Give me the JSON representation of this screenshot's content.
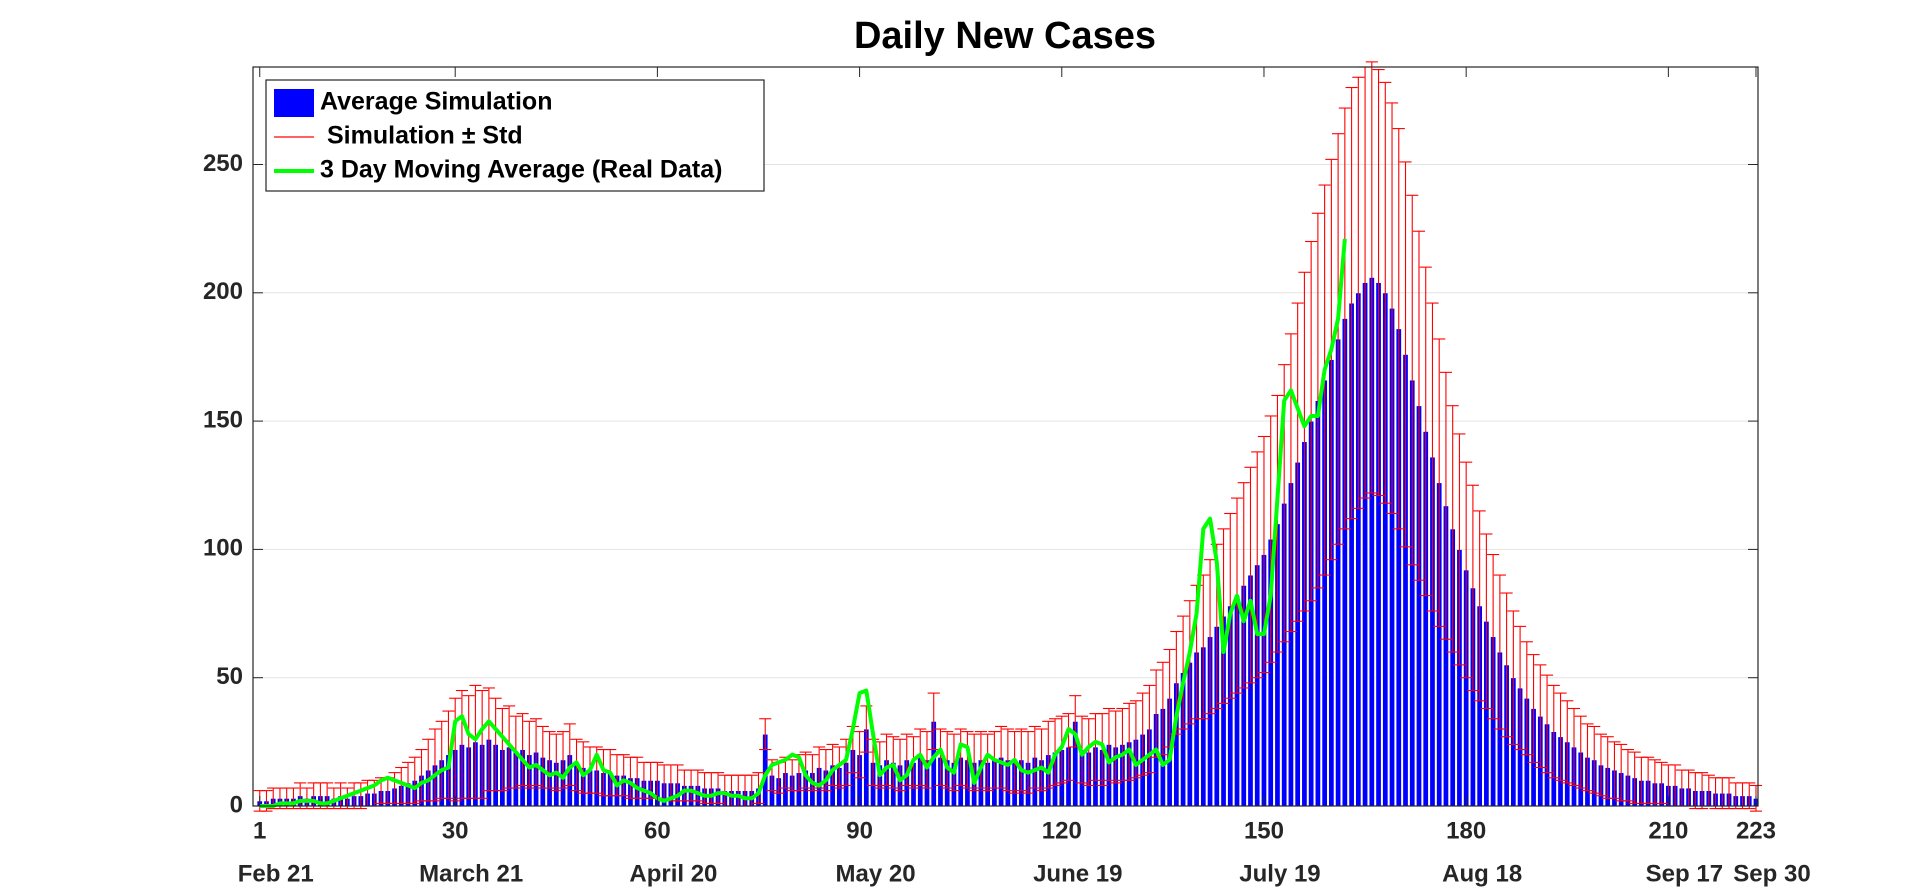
{
  "chart_data": {
    "type": "bar",
    "title": "Daily New Cases",
    "x": [
      1,
      2,
      3,
      4,
      5,
      6,
      7,
      8,
      9,
      10,
      11,
      12,
      13,
      14,
      15,
      16,
      17,
      18,
      19,
      20,
      21,
      22,
      23,
      24,
      25,
      26,
      27,
      28,
      29,
      30,
      31,
      32,
      33,
      34,
      35,
      36,
      37,
      38,
      39,
      40,
      41,
      42,
      43,
      44,
      45,
      46,
      47,
      48,
      49,
      50,
      51,
      52,
      53,
      54,
      55,
      56,
      57,
      58,
      59,
      60,
      61,
      62,
      63,
      64,
      65,
      66,
      67,
      68,
      69,
      70,
      71,
      72,
      73,
      74,
      75,
      76,
      77,
      78,
      79,
      80,
      81,
      82,
      83,
      84,
      85,
      86,
      87,
      88,
      89,
      90,
      91,
      92,
      93,
      94,
      95,
      96,
      97,
      98,
      99,
      100,
      101,
      102,
      103,
      104,
      105,
      106,
      107,
      108,
      109,
      110,
      111,
      112,
      113,
      114,
      115,
      116,
      117,
      118,
      119,
      120,
      121,
      122,
      123,
      124,
      125,
      126,
      127,
      128,
      129,
      130,
      131,
      132,
      133,
      134,
      135,
      136,
      137,
      138,
      139,
      140,
      141,
      142,
      143,
      144,
      145,
      146,
      147,
      148,
      149,
      150,
      151,
      152,
      153,
      154,
      155,
      156,
      157,
      158,
      159,
      160,
      161,
      162,
      163,
      164,
      165,
      166,
      167,
      168,
      169,
      170,
      171,
      172,
      173,
      174,
      175,
      176,
      177,
      178,
      179,
      180,
      181,
      182,
      183,
      184,
      185,
      186,
      187,
      188,
      189,
      190,
      191,
      192,
      193,
      194,
      195,
      196,
      197,
      198,
      199,
      200,
      201,
      202,
      203,
      204,
      205,
      206,
      207,
      208,
      209,
      210,
      211,
      212,
      213,
      214,
      215,
      216,
      217,
      218,
      219,
      220,
      221,
      222,
      223
    ],
    "series": [
      {
        "name": "Average Simulation",
        "color": "#0000ff",
        "error_name": "Simulation ± Std",
        "error_color": "#ff0000",
        "values": [
          2,
          2,
          3,
          3,
          3,
          3,
          4,
          3,
          4,
          4,
          4,
          3,
          4,
          3,
          4,
          4,
          5,
          5,
          6,
          6,
          7,
          8,
          9,
          10,
          12,
          14,
          16,
          18,
          20,
          22,
          24,
          23,
          25,
          24,
          26,
          24,
          22,
          23,
          21,
          22,
          20,
          21,
          19,
          18,
          17,
          18,
          20,
          16,
          15,
          14,
          14,
          13,
          13,
          12,
          12,
          11,
          11,
          10,
          10,
          10,
          9,
          9,
          9,
          8,
          8,
          8,
          7,
          7,
          7,
          6,
          6,
          6,
          6,
          6,
          7,
          28,
          12,
          11,
          13,
          12,
          13,
          14,
          13,
          15,
          14,
          16,
          15,
          17,
          22,
          20,
          30,
          17,
          16,
          18,
          17,
          16,
          18,
          17,
          19,
          18,
          33,
          19,
          18,
          17,
          19,
          18,
          17,
          18,
          17,
          18,
          19,
          18,
          17,
          18,
          17,
          19,
          18,
          20,
          21,
          22,
          23,
          33,
          22,
          21,
          23,
          22,
          24,
          23,
          24,
          25,
          26,
          28,
          30,
          36,
          38,
          42,
          48,
          52,
          56,
          60,
          62,
          66,
          70,
          74,
          78,
          82,
          86,
          90,
          94,
          98,
          104,
          110,
          118,
          126,
          134,
          142,
          150,
          158,
          166,
          174,
          182,
          190,
          196,
          200,
          204,
          206,
          204,
          200,
          194,
          186,
          176,
          166,
          156,
          146,
          136,
          126,
          117,
          108,
          100,
          92,
          85,
          78,
          72,
          66,
          60,
          55,
          50,
          46,
          42,
          38,
          35,
          32,
          29,
          27,
          25,
          23,
          21,
          19,
          18,
          16,
          15,
          14,
          13,
          12,
          11,
          10,
          10,
          9,
          9,
          8,
          8,
          7,
          7,
          6,
          6,
          6,
          5,
          5,
          5,
          4,
          4,
          4,
          3
        ],
        "errors": [
          4,
          4,
          4,
          4,
          4,
          4,
          5,
          4,
          5,
          5,
          5,
          4,
          5,
          4,
          5,
          5,
          5,
          5,
          5,
          5,
          6,
          7,
          8,
          9,
          10,
          12,
          14,
          15,
          17,
          20,
          21,
          20,
          22,
          21,
          20,
          18,
          16,
          16,
          14,
          14,
          13,
          13,
          12,
          11,
          11,
          11,
          12,
          10,
          10,
          9,
          9,
          9,
          9,
          8,
          8,
          8,
          8,
          7,
          7,
          7,
          7,
          7,
          7,
          6,
          6,
          6,
          6,
          6,
          6,
          6,
          6,
          6,
          6,
          6,
          6,
          6,
          6,
          6,
          6,
          6,
          7,
          7,
          7,
          8,
          8,
          8,
          8,
          9,
          9,
          9,
          9,
          9,
          9,
          10,
          10,
          10,
          10,
          10,
          11,
          11,
          11,
          11,
          11,
          11,
          11,
          11,
          11,
          11,
          11,
          11,
          12,
          12,
          12,
          12,
          12,
          12,
          12,
          13,
          13,
          13,
          13,
          10,
          13,
          13,
          13,
          14,
          14,
          14,
          14,
          15,
          15,
          16,
          17,
          17,
          18,
          19,
          20,
          22,
          24,
          26,
          28,
          30,
          32,
          34,
          36,
          38,
          40,
          42,
          44,
          46,
          48,
          50,
          54,
          58,
          62,
          66,
          70,
          73,
          76,
          78,
          80,
          82,
          84,
          84,
          84,
          84,
          83,
          82,
          80,
          78,
          75,
          72,
          68,
          64,
          60,
          56,
          52,
          48,
          45,
          42,
          40,
          37,
          34,
          32,
          30,
          28,
          26,
          24,
          22,
          21,
          20,
          19,
          18,
          17,
          16,
          15,
          14,
          13,
          13,
          12,
          12,
          11,
          11,
          10,
          10,
          9,
          9,
          9,
          8,
          8,
          8,
          7,
          7,
          7,
          7,
          6,
          6,
          6,
          6,
          5,
          5,
          5,
          5
        ]
      },
      {
        "name": "3 Day Moving Average (Real Data)",
        "type": "line",
        "color": "#00ff00",
        "values": [
          0,
          0,
          0,
          1,
          1,
          1,
          2,
          2,
          2,
          1,
          1,
          2,
          3,
          4,
          5,
          6,
          7,
          8,
          10,
          11,
          10,
          9,
          8,
          7,
          9,
          10,
          12,
          14,
          15,
          33,
          35,
          28,
          26,
          30,
          33,
          30,
          27,
          24,
          21,
          18,
          15,
          16,
          14,
          12,
          13,
          11,
          15,
          17,
          12,
          14,
          20,
          14,
          13,
          8,
          10,
          9,
          7,
          6,
          5,
          3,
          2,
          3,
          4,
          6,
          6,
          5,
          4,
          4,
          5,
          5,
          4,
          4,
          3,
          3,
          5,
          12,
          16,
          17,
          18,
          20,
          19,
          12,
          9,
          8,
          10,
          14,
          16,
          18,
          30,
          44,
          45,
          28,
          12,
          15,
          16,
          10,
          12,
          18,
          20,
          15,
          19,
          22,
          15,
          13,
          24,
          23,
          9,
          15,
          20,
          18,
          17,
          16,
          18,
          14,
          13,
          14,
          15,
          13,
          20,
          23,
          30,
          28,
          20,
          23,
          25,
          24,
          17,
          19,
          20,
          22,
          16,
          18,
          20,
          22,
          16,
          18,
          35,
          48,
          60,
          75,
          108,
          112,
          95,
          60,
          75,
          82,
          72,
          80,
          67,
          67,
          82,
          120,
          158,
          162,
          155,
          148,
          152,
          152,
          170,
          178,
          190,
          221,
          null,
          null,
          null,
          null,
          null,
          null,
          null,
          null,
          null,
          null,
          null,
          null,
          null,
          null,
          null,
          null,
          null,
          null,
          null,
          null,
          null,
          null,
          null,
          null,
          null,
          null,
          null,
          null,
          null,
          null,
          null,
          null,
          null,
          null,
          null,
          null,
          null,
          null,
          null,
          null,
          null,
          null,
          null,
          null,
          null,
          null,
          null,
          null,
          null,
          null,
          null,
          null,
          null,
          null,
          null,
          null,
          null,
          null,
          null,
          null,
          null
        ]
      }
    ],
    "xlim": [
      0,
      223.3
    ],
    "xticks": [
      1,
      30,
      60,
      90,
      120,
      150,
      180,
      210,
      223
    ],
    "xtick_dates": [
      "Feb 21",
      "March 21",
      "April 20",
      "May 20",
      "June 19",
      "July 19",
      "Aug 18",
      "Sep 17",
      "Sep 30"
    ],
    "ylim": [
      0,
      288
    ],
    "yticks": [
      0,
      50,
      100,
      150,
      200,
      250
    ],
    "grid": true,
    "legend": "top-left"
  }
}
